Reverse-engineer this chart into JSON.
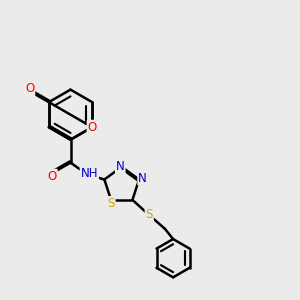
{
  "background_color": "#ebebeb",
  "bond_color": "#000000",
  "bond_width": 1.8,
  "dbo": 0.055,
  "figsize": [
    3.0,
    3.0
  ],
  "dpi": 100,
  "atom_colors": {
    "O": "#ff0000",
    "N": "#0000cd",
    "S": "#ccaa00",
    "C": "#000000"
  },
  "fs": 8.5
}
